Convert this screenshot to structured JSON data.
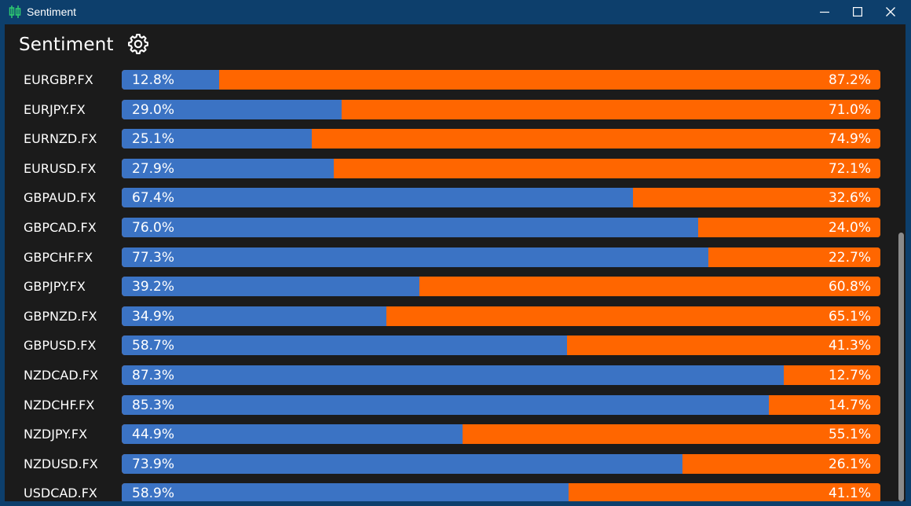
{
  "window": {
    "title": "Sentiment",
    "app_icon": "candlestick-icon",
    "controls": [
      "minimize-icon",
      "maximize-icon",
      "close-icon"
    ]
  },
  "header": {
    "title": "Sentiment",
    "settings_icon": "gear-icon"
  },
  "colors": {
    "long": "#3b73c4",
    "short": "#ff6600",
    "background": "#1b1b1b",
    "titlebar": "#0d3f6c"
  },
  "rows": [
    {
      "symbol": "EURGBP.FX",
      "long": 12.8,
      "short": 87.2,
      "long_label": "12.8%",
      "short_label": "87.2%"
    },
    {
      "symbol": "EURJPY.FX",
      "long": 29.0,
      "short": 71.0,
      "long_label": "29.0%",
      "short_label": "71.0%"
    },
    {
      "symbol": "EURNZD.FX",
      "long": 25.1,
      "short": 74.9,
      "long_label": "25.1%",
      "short_label": "74.9%"
    },
    {
      "symbol": "EURUSD.FX",
      "long": 27.9,
      "short": 72.1,
      "long_label": "27.9%",
      "short_label": "72.1%"
    },
    {
      "symbol": "GBPAUD.FX",
      "long": 67.4,
      "short": 32.6,
      "long_label": "67.4%",
      "short_label": "32.6%"
    },
    {
      "symbol": "GBPCAD.FX",
      "long": 76.0,
      "short": 24.0,
      "long_label": "76.0%",
      "short_label": "24.0%"
    },
    {
      "symbol": "GBPCHF.FX",
      "long": 77.3,
      "short": 22.7,
      "long_label": "77.3%",
      "short_label": "22.7%"
    },
    {
      "symbol": "GBPJPY.FX",
      "long": 39.2,
      "short": 60.8,
      "long_label": "39.2%",
      "short_label": "60.8%"
    },
    {
      "symbol": "GBPNZD.FX",
      "long": 34.9,
      "short": 65.1,
      "long_label": "34.9%",
      "short_label": "65.1%"
    },
    {
      "symbol": "GBPUSD.FX",
      "long": 58.7,
      "short": 41.3,
      "long_label": "58.7%",
      "short_label": "41.3%"
    },
    {
      "symbol": "NZDCAD.FX",
      "long": 87.3,
      "short": 12.7,
      "long_label": "87.3%",
      "short_label": "12.7%"
    },
    {
      "symbol": "NZDCHF.FX",
      "long": 85.3,
      "short": 14.7,
      "long_label": "85.3%",
      "short_label": "14.7%"
    },
    {
      "symbol": "NZDJPY.FX",
      "long": 44.9,
      "short": 55.1,
      "long_label": "44.9%",
      "short_label": "55.1%"
    },
    {
      "symbol": "NZDUSD.FX",
      "long": 73.9,
      "short": 26.1,
      "long_label": "73.9%",
      "short_label": "26.1%"
    },
    {
      "symbol": "USDCAD.FX",
      "long": 58.9,
      "short": 41.1,
      "long_label": "58.9%",
      "short_label": "41.1%"
    }
  ]
}
